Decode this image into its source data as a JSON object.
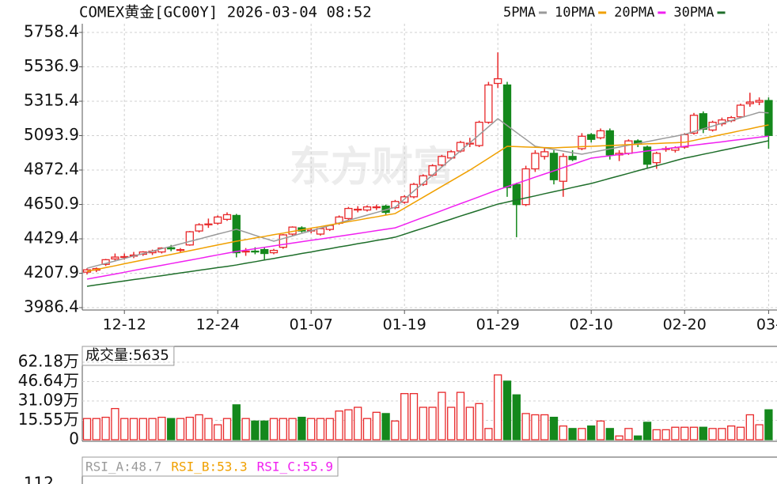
{
  "header": {
    "title": "COMEX黄金[GC00Y] 2026-03-04 08:52"
  },
  "chart_data": [
    {
      "type": "candlestick",
      "watermark": "东方财富",
      "grid": true,
      "legend": "top-right",
      "up_color": "#e8282a",
      "down_color": "#14881c",
      "categories": [
        null,
        null,
        null,
        null,
        "12-12",
        null,
        null,
        null,
        null,
        null,
        null,
        null,
        null,
        null,
        "12-24",
        null,
        null,
        null,
        null,
        null,
        null,
        null,
        null,
        null,
        "01-07",
        null,
        null,
        null,
        null,
        null,
        null,
        null,
        null,
        null,
        "01-19",
        null,
        null,
        null,
        null,
        null,
        null,
        null,
        null,
        null,
        "01-29",
        null,
        null,
        null,
        null,
        null,
        null,
        null,
        null,
        null,
        "02-10",
        null,
        null,
        null,
        null,
        null,
        null,
        null,
        null,
        null,
        "02-20",
        null,
        null,
        null,
        null,
        null,
        null,
        null,
        null,
        "03-"
      ],
      "open": [
        4215,
        4228,
        4265,
        4300,
        4310,
        4318,
        4330,
        4340,
        4345,
        4372,
        4355,
        4390,
        4480,
        4520,
        4530,
        4555,
        4580,
        4345,
        4350,
        4360,
        4340,
        4375,
        4460,
        4500,
        4480,
        4460,
        4490,
        4530,
        4560,
        4615,
        4615,
        4630,
        4640,
        4630,
        4665,
        4700,
        4780,
        4840,
        4905,
        4950,
        4995,
        5040,
        5030,
        5180,
        5430,
        5420,
        4780,
        4650,
        4880,
        4960,
        4980,
        4800,
        4960,
        5010,
        5100,
        5080,
        5125,
        4970,
        4980,
        5060,
        5020,
        4920,
        5005,
        5000,
        5020,
        5110,
        5235,
        5130,
        5170,
        5190,
        5215,
        5300,
        5310,
        5320
      ],
      "high": [
        4240,
        4245,
        4300,
        4335,
        4335,
        4345,
        4350,
        4360,
        4375,
        4390,
        4370,
        4480,
        4530,
        4560,
        4580,
        4600,
        4590,
        4370,
        4375,
        4375,
        4365,
        4460,
        4510,
        4510,
        4500,
        4500,
        4520,
        4580,
        4635,
        4640,
        4645,
        4650,
        4650,
        4680,
        4710,
        4790,
        4845,
        4910,
        4970,
        5000,
        5060,
        5080,
        5190,
        5440,
        5630,
        5440,
        4790,
        4900,
        5000,
        5020,
        5000,
        4980,
        5000,
        5110,
        5110,
        5140,
        5140,
        5000,
        5070,
        5070,
        5030,
        4990,
        5025,
        5025,
        5110,
        5240,
        5250,
        5190,
        5210,
        5220,
        5300,
        5370,
        5340,
        5340
      ],
      "low": [
        4200,
        4215,
        4255,
        4290,
        4295,
        4305,
        4320,
        4325,
        4335,
        4350,
        4340,
        4385,
        4470,
        4500,
        4520,
        4545,
        4310,
        4320,
        4330,
        4290,
        4330,
        4365,
        4450,
        4470,
        4465,
        4450,
        4480,
        4520,
        4550,
        4600,
        4605,
        4615,
        4580,
        4620,
        4655,
        4690,
        4770,
        4830,
        4895,
        4940,
        4985,
        5020,
        5020,
        5170,
        5400,
        4700,
        4440,
        4640,
        4860,
        4940,
        4780,
        4700,
        4930,
        5000,
        5050,
        5070,
        4940,
        4930,
        4970,
        5020,
        4880,
        4880,
        4990,
        4985,
        5010,
        5100,
        5110,
        5120,
        5155,
        5180,
        5205,
        5280,
        5290,
        5010
      ],
      "close": [
        4230,
        4238,
        4295,
        4312,
        4315,
        4325,
        4345,
        4350,
        4370,
        4365,
        4360,
        4475,
        4520,
        4525,
        4570,
        4585,
        4340,
        4350,
        4345,
        4335,
        4355,
        4455,
        4505,
        4480,
        4485,
        4495,
        4515,
        4570,
        4625,
        4620,
        4635,
        4635,
        4600,
        4670,
        4700,
        4780,
        4835,
        4900,
        4960,
        4990,
        5050,
        5045,
        5180,
        5420,
        5460,
        4760,
        4650,
        4880,
        4980,
        4990,
        4810,
        4960,
        4940,
        5090,
        5070,
        5125,
        4970,
        4980,
        5060,
        5040,
        4910,
        4980,
        5010,
        5015,
        5100,
        5225,
        5135,
        5180,
        5195,
        5210,
        5290,
        5310,
        5320,
        5095
      ],
      "series": [
        {
          "name": "5PMA",
          "color": "#9a9a9a",
          "values": [
            4240,
            4256,
            4271,
            4287,
            4303,
            4319,
            4334,
            4350,
            4366,
            4381,
            4397,
            4413,
            4428,
            4444,
            4460,
            4475,
            4491,
            4472,
            4452,
            4433,
            4414,
            4431,
            4448,
            4465,
            4481,
            4498,
            4515,
            4532,
            4549,
            4565,
            4582,
            4599,
            4616,
            4633,
            4685,
            4737,
            4788,
            4840,
            4892,
            4944,
            4996,
            5048,
            5099,
            5151,
            5203,
            5159,
            5114,
            5070,
            5025,
            5015,
            5005,
            4994,
            4984,
            4974,
            4986,
            4997,
            5009,
            5020,
            5032,
            5044,
            5055,
            5067,
            5079,
            5090,
            5102,
            5120,
            5138,
            5155,
            5173,
            5191,
            5209,
            5226,
            5244,
            5240
          ]
        },
        {
          "name": "10PMA",
          "color": "#f0a000",
          "values": [
            4220,
            4232,
            4244,
            4256,
            4269,
            4281,
            4293,
            4305,
            4317,
            4329,
            4341,
            4353,
            4365,
            4378,
            4390,
            4402,
            4414,
            4424,
            4435,
            4445,
            4456,
            4466,
            4477,
            4487,
            4498,
            4508,
            4519,
            4529,
            4540,
            4550,
            4561,
            4571,
            4582,
            4592,
            4627,
            4662,
            4697,
            4732,
            4767,
            4802,
            4837,
            4872,
            4910,
            4948,
            4987,
            5025,
            5023,
            5021,
            5019,
            5017,
            5015,
            5018,
            5020,
            5023,
            5025,
            5028,
            5030,
            5033,
            5036,
            5038,
            5041,
            5043,
            5046,
            5048,
            5051,
            5063,
            5076,
            5088,
            5101,
            5113,
            5126,
            5138,
            5151,
            5163
          ]
        },
        {
          "name": "20PMA",
          "color": "#f020f0",
          "values": [
            4170,
            4181,
            4192,
            4203,
            4214,
            4226,
            4237,
            4248,
            4259,
            4270,
            4281,
            4292,
            4303,
            4315,
            4326,
            4337,
            4348,
            4357,
            4366,
            4375,
            4384,
            4393,
            4402,
            4411,
            4420,
            4428,
            4437,
            4446,
            4455,
            4464,
            4473,
            4482,
            4491,
            4500,
            4522,
            4545,
            4567,
            4589,
            4611,
            4634,
            4656,
            4678,
            4700,
            4723,
            4745,
            4765,
            4786,
            4806,
            4827,
            4847,
            4867,
            4888,
            4908,
            4929,
            4949,
            4957,
            4964,
            4972,
            4979,
            4987,
            4995,
            5002,
            5010,
            5017,
            5025,
            5032,
            5040,
            5047,
            5054,
            5062,
            5069,
            5076,
            5084,
            5091
          ]
        },
        {
          "name": "30PMA",
          "color": "#1e6e2a",
          "values": [
            4124,
            4133,
            4141,
            4150,
            4158,
            4167,
            4175,
            4184,
            4192,
            4201,
            4210,
            4218,
            4227,
            4235,
            4244,
            4252,
            4261,
            4272,
            4282,
            4293,
            4303,
            4314,
            4324,
            4335,
            4345,
            4356,
            4366,
            4377,
            4387,
            4398,
            4408,
            4419,
            4429,
            4440,
            4459,
            4479,
            4498,
            4517,
            4537,
            4556,
            4576,
            4595,
            4614,
            4634,
            4653,
            4666,
            4680,
            4693,
            4706,
            4720,
            4733,
            4746,
            4760,
            4773,
            4786,
            4802,
            4819,
            4835,
            4851,
            4868,
            4884,
            4900,
            4916,
            4933,
            4949,
            4961,
            4974,
            4986,
            4999,
            5011,
            5024,
            5036,
            5048,
            5061
          ]
        }
      ],
      "ylim": [
        3986.4,
        5758.4
      ],
      "yticks": [
        3986.4,
        4207.9,
        4429.4,
        4650.9,
        4872.4,
        5093.9,
        5315.4,
        5536.9,
        5758.4
      ]
    },
    {
      "type": "bar",
      "title": "成交量:5635",
      "values": [
        17,
        17,
        18,
        25,
        17,
        17,
        17,
        17,
        18,
        17,
        17,
        18,
        20,
        17,
        12,
        17,
        28,
        17,
        15,
        15,
        17,
        17,
        17,
        18,
        17,
        17,
        17,
        23,
        24,
        26,
        17,
        22,
        21,
        15,
        37,
        37,
        26,
        26,
        38,
        26,
        38,
        26,
        29,
        9,
        52,
        47,
        36,
        21,
        20,
        20,
        18,
        11,
        9,
        9,
        11,
        15,
        9,
        3,
        9,
        3,
        14,
        8,
        8,
        10,
        10,
        10,
        10,
        9,
        9,
        11,
        10,
        20,
        12,
        24
      ],
      "ylim": [
        0,
        62.18
      ],
      "yticks": [
        0,
        {
          "value": 15.55,
          "label": "15.55万"
        },
        {
          "value": 31.09,
          "label": "31.09万"
        },
        {
          "value": 46.64,
          "label": "46.64万"
        },
        {
          "value": 62.18,
          "label": "62.18万"
        }
      ]
    }
  ],
  "rsi": {
    "labels": [
      {
        "text": "RSI_A:48.7",
        "color": "#9a9a9a"
      },
      {
        "text": "RSI_B:53.3",
        "color": "#f0a000"
      },
      {
        "text": "RSI_C:55.9",
        "color": "#f020f0"
      }
    ],
    "top_tick": "112"
  }
}
